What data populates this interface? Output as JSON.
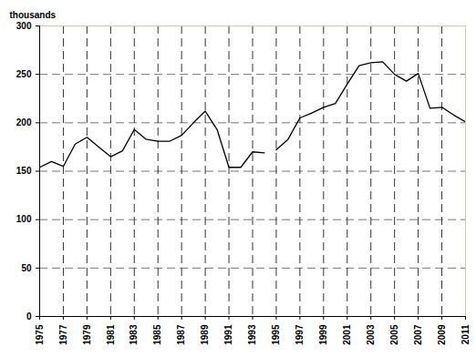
{
  "chart_data": {
    "type": "line",
    "y_label": "thousands",
    "series": [
      {
        "color": "#000000",
        "x": [
          1975,
          1976,
          1977,
          1978,
          1979,
          1980,
          1981,
          1982,
          1983,
          1984,
          1985,
          1986,
          1987,
          1988,
          1989,
          1990,
          1991,
          1992,
          1993,
          1994
        ],
        "values": [
          154,
          160,
          155,
          178,
          185,
          175,
          165,
          171,
          193,
          183,
          181,
          181,
          187,
          200,
          212,
          193,
          154,
          154,
          170,
          169
        ]
      },
      {
        "color": "#000000",
        "x": [
          1995,
          1996,
          1997,
          1998,
          1999,
          2000,
          2001,
          2002,
          2003,
          2004,
          2005,
          2006,
          2007,
          2008,
          2009,
          2010,
          2011
        ],
        "values": [
          172,
          183,
          205,
          210,
          216,
          220,
          240,
          259,
          262,
          263,
          250,
          243,
          251,
          215,
          216,
          208,
          201
        ]
      }
    ],
    "xlim": [
      1975,
      2011
    ],
    "xticks": [
      1975,
      1977,
      1979,
      1981,
      1983,
      1985,
      1987,
      1989,
      1991,
      1993,
      1995,
      1997,
      1999,
      2001,
      2003,
      2005,
      2007,
      2009,
      2011
    ],
    "ylim": [
      0,
      300
    ],
    "yticks": [
      0,
      50,
      100,
      150,
      200,
      250,
      300
    ],
    "grid": true
  }
}
